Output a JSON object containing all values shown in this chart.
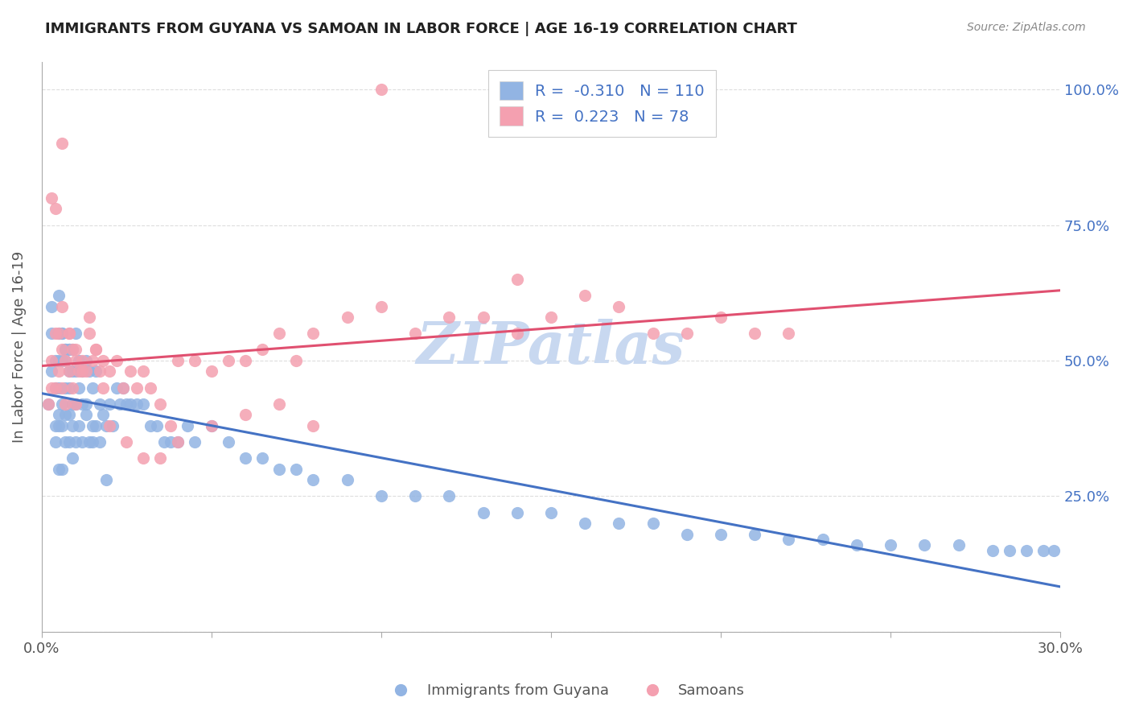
{
  "title": "IMMIGRANTS FROM GUYANA VS SAMOAN IN LABOR FORCE | AGE 16-19 CORRELATION CHART",
  "source": "Source: ZipAtlas.com",
  "xlabel_bottom": "",
  "ylabel": "In Labor Force | Age 16-19",
  "xlim": [
    0.0,
    0.3
  ],
  "ylim": [
    0.0,
    1.05
  ],
  "yticks": [
    0.0,
    0.25,
    0.5,
    0.75,
    1.0
  ],
  "ytick_labels": [
    "",
    "25.0%",
    "50.0%",
    "75.0%",
    "100.0%"
  ],
  "xticks": [
    0.0,
    0.05,
    0.1,
    0.15,
    0.2,
    0.25,
    0.3
  ],
  "xtick_labels": [
    "0.0%",
    "",
    "",
    "",
    "",
    "",
    "30.0%"
  ],
  "guyana_color": "#92b4e3",
  "samoan_color": "#f4a0b0",
  "guyana_line_color": "#4472c4",
  "samoan_line_color": "#e05070",
  "guyana_R": -0.31,
  "guyana_N": 110,
  "samoan_R": 0.223,
  "samoan_N": 78,
  "watermark": "ZIPatlas",
  "watermark_color": "#c8d8f0",
  "legend_r_color": "#4472c4",
  "legend_n_color": "#4472c4",
  "background_color": "#ffffff",
  "guyana_x": [
    0.002,
    0.003,
    0.003,
    0.003,
    0.004,
    0.004,
    0.004,
    0.004,
    0.005,
    0.005,
    0.005,
    0.005,
    0.005,
    0.006,
    0.006,
    0.006,
    0.006,
    0.006,
    0.007,
    0.007,
    0.007,
    0.007,
    0.007,
    0.008,
    0.008,
    0.008,
    0.008,
    0.008,
    0.009,
    0.009,
    0.009,
    0.009,
    0.01,
    0.01,
    0.01,
    0.01,
    0.011,
    0.011,
    0.012,
    0.012,
    0.012,
    0.013,
    0.013,
    0.014,
    0.014,
    0.015,
    0.015,
    0.016,
    0.016,
    0.017,
    0.018,
    0.019,
    0.019,
    0.02,
    0.021,
    0.022,
    0.023,
    0.024,
    0.025,
    0.026,
    0.028,
    0.03,
    0.032,
    0.034,
    0.036,
    0.038,
    0.04,
    0.043,
    0.045,
    0.05,
    0.055,
    0.06,
    0.065,
    0.07,
    0.075,
    0.08,
    0.09,
    0.1,
    0.11,
    0.12,
    0.13,
    0.14,
    0.15,
    0.16,
    0.17,
    0.18,
    0.19,
    0.2,
    0.21,
    0.22,
    0.23,
    0.24,
    0.25,
    0.26,
    0.27,
    0.28,
    0.285,
    0.29,
    0.295,
    0.298,
    0.005,
    0.005,
    0.006,
    0.007,
    0.008,
    0.009,
    0.011,
    0.013,
    0.015,
    0.017
  ],
  "guyana_y": [
    0.42,
    0.6,
    0.55,
    0.48,
    0.38,
    0.35,
    0.5,
    0.45,
    0.3,
    0.5,
    0.45,
    0.4,
    0.38,
    0.55,
    0.5,
    0.42,
    0.38,
    0.3,
    0.5,
    0.45,
    0.52,
    0.4,
    0.35,
    0.48,
    0.52,
    0.45,
    0.4,
    0.35,
    0.48,
    0.42,
    0.38,
    0.32,
    0.55,
    0.48,
    0.42,
    0.35,
    0.5,
    0.38,
    0.48,
    0.42,
    0.35,
    0.5,
    0.4,
    0.48,
    0.35,
    0.45,
    0.35,
    0.48,
    0.38,
    0.42,
    0.4,
    0.38,
    0.28,
    0.42,
    0.38,
    0.45,
    0.42,
    0.45,
    0.42,
    0.42,
    0.42,
    0.42,
    0.38,
    0.38,
    0.35,
    0.35,
    0.35,
    0.38,
    0.35,
    0.38,
    0.35,
    0.32,
    0.32,
    0.3,
    0.3,
    0.28,
    0.28,
    0.25,
    0.25,
    0.25,
    0.22,
    0.22,
    0.22,
    0.2,
    0.2,
    0.2,
    0.18,
    0.18,
    0.18,
    0.17,
    0.17,
    0.16,
    0.16,
    0.16,
    0.16,
    0.15,
    0.15,
    0.15,
    0.15,
    0.15,
    0.62,
    0.55,
    0.55,
    0.52,
    0.52,
    0.52,
    0.45,
    0.42,
    0.38,
    0.35
  ],
  "samoan_x": [
    0.002,
    0.003,
    0.003,
    0.004,
    0.004,
    0.005,
    0.005,
    0.006,
    0.006,
    0.007,
    0.007,
    0.008,
    0.008,
    0.009,
    0.009,
    0.01,
    0.01,
    0.011,
    0.012,
    0.013,
    0.014,
    0.015,
    0.016,
    0.017,
    0.018,
    0.02,
    0.022,
    0.024,
    0.026,
    0.028,
    0.03,
    0.032,
    0.035,
    0.038,
    0.04,
    0.045,
    0.05,
    0.055,
    0.06,
    0.065,
    0.07,
    0.075,
    0.08,
    0.09,
    0.1,
    0.11,
    0.12,
    0.13,
    0.14,
    0.15,
    0.16,
    0.17,
    0.18,
    0.19,
    0.2,
    0.21,
    0.22,
    0.006,
    0.008,
    0.01,
    0.012,
    0.014,
    0.016,
    0.018,
    0.02,
    0.025,
    0.03,
    0.035,
    0.04,
    0.05,
    0.06,
    0.07,
    0.08,
    0.1,
    0.14,
    0.003,
    0.004,
    0.006
  ],
  "samoan_y": [
    0.42,
    0.5,
    0.45,
    0.55,
    0.45,
    0.55,
    0.48,
    0.52,
    0.45,
    0.5,
    0.42,
    0.55,
    0.48,
    0.52,
    0.45,
    0.5,
    0.42,
    0.48,
    0.5,
    0.48,
    0.55,
    0.5,
    0.52,
    0.48,
    0.5,
    0.48,
    0.5,
    0.45,
    0.48,
    0.45,
    0.48,
    0.45,
    0.42,
    0.38,
    0.5,
    0.5,
    0.48,
    0.5,
    0.5,
    0.52,
    0.55,
    0.5,
    0.55,
    0.58,
    0.6,
    0.55,
    0.58,
    0.58,
    0.55,
    0.58,
    0.62,
    0.6,
    0.55,
    0.55,
    0.58,
    0.55,
    0.55,
    0.6,
    0.55,
    0.52,
    0.48,
    0.58,
    0.52,
    0.45,
    0.38,
    0.35,
    0.32,
    0.32,
    0.35,
    0.38,
    0.4,
    0.42,
    0.38,
    1.0,
    0.65,
    0.8,
    0.78,
    0.9
  ]
}
